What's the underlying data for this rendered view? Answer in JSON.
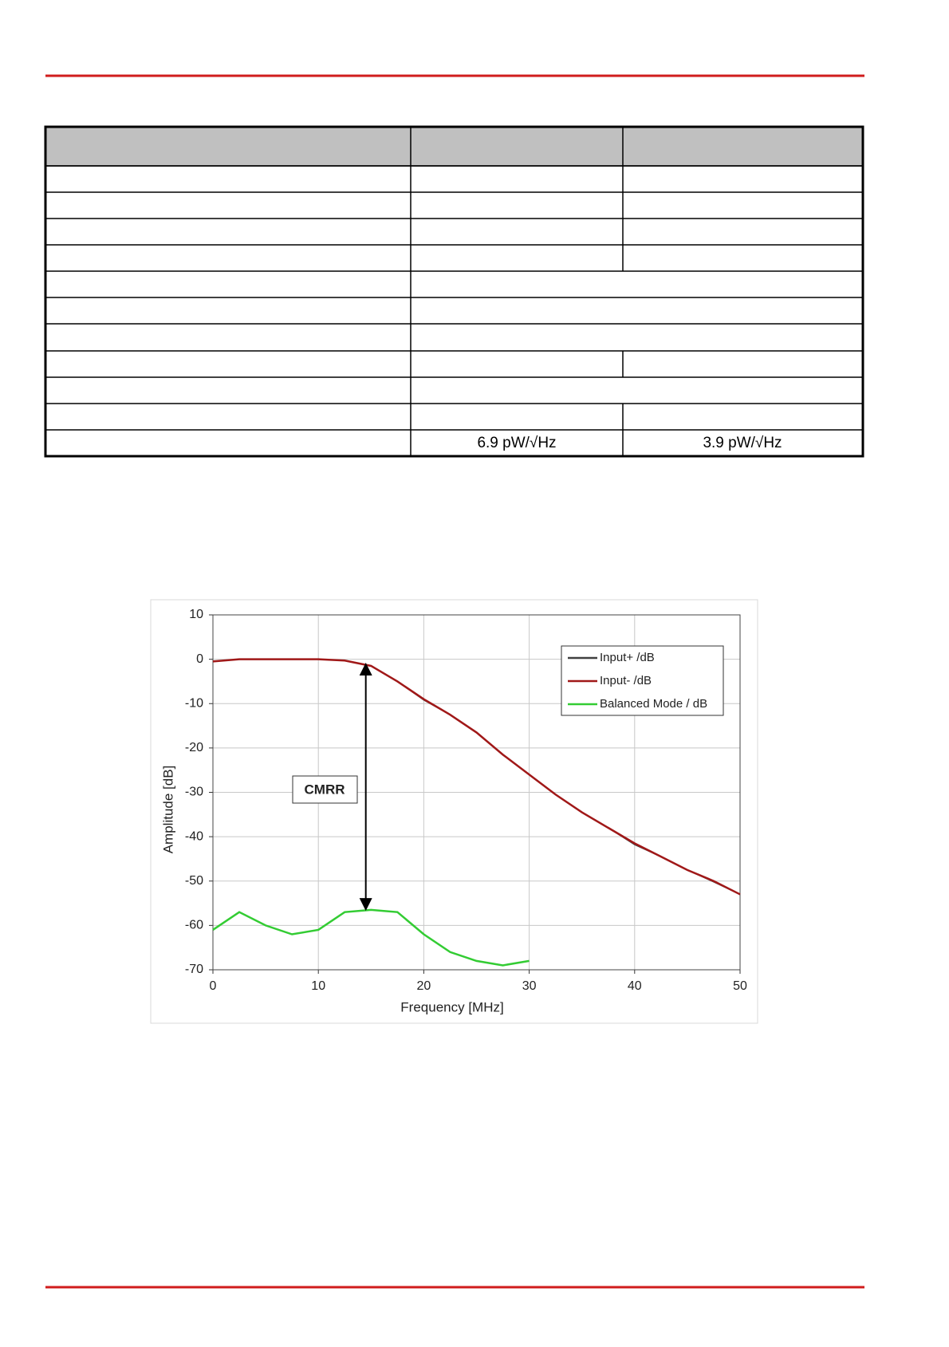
{
  "table": {
    "noise_values": [
      "6.9 pW/√Hz",
      "3.9 pW/√Hz"
    ]
  },
  "chart_data": {
    "type": "line",
    "x": [
      0,
      2.5,
      5,
      7.5,
      10,
      12.5,
      15,
      17.5,
      20,
      22.5,
      25,
      27.5,
      30,
      32.5,
      35,
      37.5,
      40,
      42.5,
      45,
      47.5,
      50
    ],
    "series": [
      {
        "name": "Input+ /dB",
        "color": "#404040",
        "values": [
          -0.5,
          0,
          0,
          0,
          0,
          -0.3,
          -1.5,
          -5,
          -9.2,
          -12.5,
          -16.5,
          -21.5,
          -26,
          -30.5,
          -34.5,
          -38,
          -41.8,
          -44.5,
          -47.5,
          -50.2,
          -53
        ]
      },
      {
        "name": "Input- /dB",
        "color": "#a01818",
        "values": [
          -0.5,
          0,
          0,
          0,
          0,
          -0.3,
          -1.5,
          -5,
          -9,
          -12.5,
          -16.5,
          -21.5,
          -26,
          -30.5,
          -34.5,
          -38,
          -41.5,
          -44.5,
          -47.5,
          -50,
          -53
        ]
      },
      {
        "name": "Balanced Mode / dB",
        "color": "#33cc33",
        "values": [
          -61,
          -57,
          -60,
          -62,
          -61,
          -57,
          -56.5,
          -57,
          -62,
          -66,
          -68,
          -69,
          -68,
          null,
          null,
          null,
          null,
          null,
          null,
          null,
          null
        ]
      }
    ],
    "xlabel": "Frequency [MHz]",
    "ylabel": "Amplitude [dB]",
    "xlim": [
      0,
      50
    ],
    "ylim": [
      -70,
      10
    ],
    "xticks": [
      0,
      10,
      20,
      30,
      40,
      50
    ],
    "yticks": [
      -70,
      -60,
      -50,
      -40,
      -30,
      -20,
      -10,
      0,
      10
    ],
    "grid": true,
    "legend": "upper right",
    "annotation": "CMRR"
  }
}
